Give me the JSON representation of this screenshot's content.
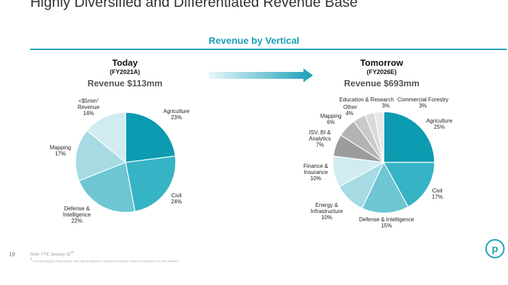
{
  "slide": {
    "title": "Highly Diversified and Differentiated Revenue Base",
    "section_title": "Revenue by Vertical",
    "page_number": "19",
    "note": "Note: FYE January 31",
    "note_sup": "st",
    "footnote_marker": "1",
    "footnote": "Includes Energy & Infrastructure, Education & Research, Commercial Forestry, Finance & Insurance, ISV, BI & Analytics.",
    "logo_letter": "p"
  },
  "left": {
    "heading": "Today",
    "subheading": "(FY2021A)",
    "revenue": "Revenue $113mm"
  },
  "right": {
    "heading": "Tomorrow",
    "subheading": "(FY2026E)",
    "revenue": "Revenue $693mm"
  },
  "colors": {
    "accent": "#1a9fb8",
    "arrow_start": "#e8f7fa",
    "arrow_end": "#1a9fb8"
  },
  "chart_data": [
    {
      "type": "pie",
      "title": "Today",
      "slices": [
        {
          "label": "Agriculture",
          "pct_label": "23%",
          "value": 23,
          "color": "#0c9bb0"
        },
        {
          "label": "Civil",
          "pct_label": "24%",
          "value": 24,
          "color": "#36b3c4"
        },
        {
          "label": "Defense & Intelligence",
          "pct_label": "22%",
          "value": 22,
          "color": "#6ec6d3"
        },
        {
          "label": "Mapping",
          "pct_label": "17%",
          "value": 17,
          "color": "#a6dbe3"
        },
        {
          "label": "<$5mm Revenue",
          "pct_label": "14%",
          "value": 14,
          "color": "#d1ecf1"
        }
      ]
    },
    {
      "type": "pie",
      "title": "Tomorrow",
      "slices": [
        {
          "label": "Agriculture",
          "pct_label": "25%",
          "value": 25,
          "color": "#0c9bb0"
        },
        {
          "label": "Civil",
          "pct_label": "17%",
          "value": 17,
          "color": "#36b3c4"
        },
        {
          "label": "Defense & Intelligence",
          "pct_label": "15%",
          "value": 15,
          "color": "#6ec6d3"
        },
        {
          "label": "Energy & Infrastructure",
          "pct_label": "10%",
          "value": 10,
          "color": "#a6dbe3"
        },
        {
          "label": "Finance & Insurance",
          "pct_label": "10%",
          "value": 10,
          "color": "#d1ecf1"
        },
        {
          "label": "ISV, BI & Analytics",
          "pct_label": "7%",
          "value": 7,
          "color": "#9c9c9c"
        },
        {
          "label": "Mapping",
          "pct_label": "6%",
          "value": 6,
          "color": "#b3b3b3"
        },
        {
          "label": "Other",
          "pct_label": "4%",
          "value": 4,
          "color": "#c9c9c9"
        },
        {
          "label": "Education & Research",
          "pct_label": "3%",
          "value": 3,
          "color": "#dadada"
        },
        {
          "label": "Commercial Forestry",
          "pct_label": "3%",
          "value": 3,
          "color": "#e8e8e8"
        }
      ]
    }
  ]
}
